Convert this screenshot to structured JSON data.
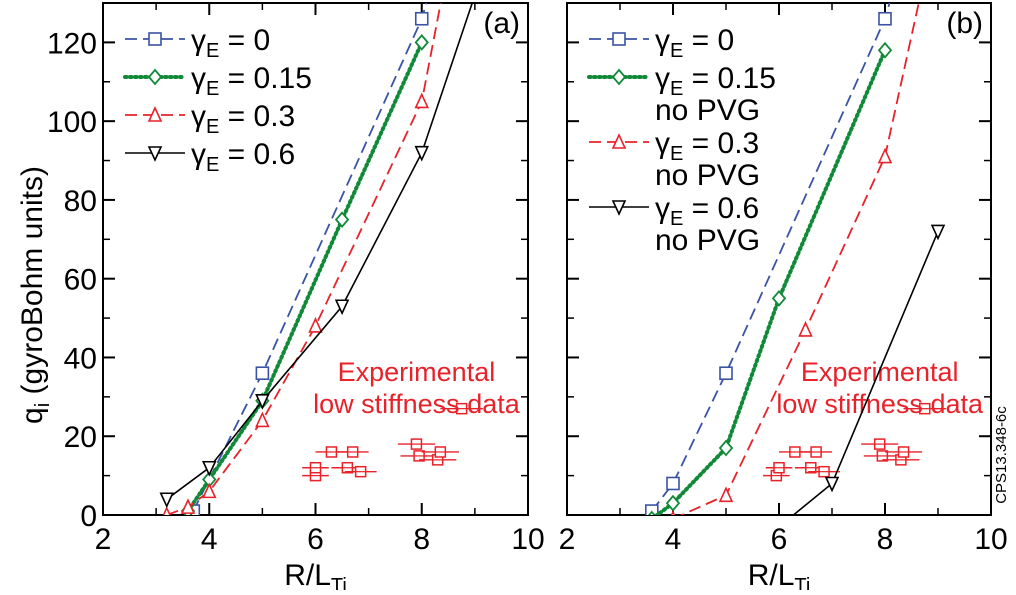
{
  "figure": {
    "ylabel_main": "q",
    "ylabel_sub": "i",
    "ylabel_rest": " (gyroBohm units)",
    "side_text": "CPS13.348-6c",
    "colors": {
      "blue": "#3a53a4",
      "green": "#108a38",
      "red": "#e8222a",
      "black": "#000000",
      "annot": "#e8222a"
    }
  },
  "chart_data": [
    {
      "type": "line",
      "panel_label": "(a)",
      "xlabel_main": "R/L",
      "xlabel_sub": "Ti",
      "xlim": [
        2,
        10
      ],
      "ylim": [
        0,
        130
      ],
      "xticks": [
        2,
        4,
        6,
        8,
        10
      ],
      "yticks": [
        0,
        20,
        40,
        60,
        80,
        100,
        120
      ],
      "grid": false,
      "legend": "top-left",
      "series": [
        {
          "name": "γE = 0",
          "name_main": "γ",
          "name_sub": "E",
          "name_rest": " = 0",
          "name_line2": "",
          "color": "blue",
          "dash": "dashed",
          "marker": "square",
          "points": [
            [
              3.7,
              1
            ],
            [
              5,
              36
            ],
            [
              8,
              126
            ],
            [
              8.3,
              140
            ]
          ],
          "marker_points": [
            [
              3.7,
              1
            ],
            [
              5,
              36
            ],
            [
              8,
              126
            ]
          ]
        },
        {
          "name": "γE = 0.15",
          "name_main": "γ",
          "name_sub": "E",
          "name_rest": " = 0.15",
          "name_line2": "",
          "color": "green",
          "dash": "dotted",
          "marker": "diamond",
          "points": [
            [
              3.6,
              1
            ],
            [
              4,
              9
            ],
            [
              5,
              29
            ],
            [
              6.5,
              75
            ],
            [
              8,
              120
            ]
          ],
          "marker_points": [
            [
              3.6,
              1
            ],
            [
              4,
              9
            ],
            [
              5,
              29
            ],
            [
              6.5,
              75
            ],
            [
              8,
              120
            ]
          ]
        },
        {
          "name": "γE = 0.3",
          "name_main": "γ",
          "name_sub": "E",
          "name_rest": " = 0.3",
          "name_line2": "",
          "color": "red",
          "dash": "dashed",
          "marker": "triangle-up",
          "points": [
            [
              3.2,
              0
            ],
            [
              3.6,
              2
            ],
            [
              4,
              6
            ],
            [
              5,
              24
            ],
            [
              6,
              48
            ],
            [
              8,
              105
            ],
            [
              8.5,
              140
            ]
          ],
          "marker_points": [
            [
              3.2,
              0
            ],
            [
              3.6,
              2
            ],
            [
              4,
              6
            ],
            [
              5,
              24
            ],
            [
              6,
              48
            ],
            [
              8,
              105
            ]
          ]
        },
        {
          "name": "γE = 0.6",
          "name_main": "γ",
          "name_sub": "E",
          "name_rest": " = 0.6",
          "name_line2": "",
          "color": "black",
          "dash": "solid",
          "marker": "triangle-down",
          "points": [
            [
              3.2,
              4
            ],
            [
              4,
              12
            ],
            [
              5,
              29
            ],
            [
              6.5,
              53
            ],
            [
              8,
              92
            ],
            [
              9.2,
              140
            ]
          ],
          "marker_points": [
            [
              3.2,
              4
            ],
            [
              4,
              12
            ],
            [
              5,
              29
            ],
            [
              6.5,
              53
            ],
            [
              8,
              92
            ]
          ]
        }
      ],
      "experimental": {
        "label_line1": "Experimental",
        "label_line2": "low stiffness data",
        "color": "annot",
        "points": [
          {
            "x": 6.0,
            "y": 10,
            "xerr": 0.25
          },
          {
            "x": 6.0,
            "y": 12,
            "xerr": 0.25
          },
          {
            "x": 6.3,
            "y": 16,
            "xerr": 0.3
          },
          {
            "x": 6.7,
            "y": 16,
            "xerr": 0.3
          },
          {
            "x": 6.6,
            "y": 12,
            "xerr": 0.3
          },
          {
            "x": 6.85,
            "y": 11,
            "xerr": 0.3
          },
          {
            "x": 7.9,
            "y": 18,
            "xerr": 0.35
          },
          {
            "x": 7.95,
            "y": 15,
            "xerr": 0.35
          },
          {
            "x": 8.3,
            "y": 14,
            "xerr": 0.35
          },
          {
            "x": 8.35,
            "y": 16,
            "xerr": 0.35
          },
          {
            "x": 8.75,
            "y": 27,
            "xerr": 0.4
          }
        ]
      }
    },
    {
      "type": "line",
      "panel_label": "(b)",
      "xlabel_main": "R/L",
      "xlabel_sub": "Ti",
      "xlim": [
        2,
        10
      ],
      "ylim": [
        0,
        130
      ],
      "xticks": [
        2,
        4,
        6,
        8,
        10
      ],
      "yticks": [
        0,
        20,
        40,
        60,
        80,
        100,
        120
      ],
      "grid": false,
      "legend": "top-left",
      "series": [
        {
          "name": "γE = 0",
          "name_main": "γ",
          "name_sub": "E",
          "name_rest": " = 0",
          "name_line2": "",
          "color": "blue",
          "dash": "dashed",
          "marker": "square",
          "points": [
            [
              3.6,
              1
            ],
            [
              4,
              8
            ],
            [
              5,
              36
            ],
            [
              8,
              126
            ],
            [
              8.3,
              140
            ]
          ],
          "marker_points": [
            [
              3.6,
              1
            ],
            [
              4,
              8
            ],
            [
              5,
              36
            ],
            [
              8,
              126
            ]
          ]
        },
        {
          "name": "γE = 0.15 no PVG",
          "name_main": "γ",
          "name_sub": "E",
          "name_rest": " = 0.15",
          "name_line2": "no PVG",
          "color": "green",
          "dash": "dotted",
          "marker": "diamond",
          "points": [
            [
              3.6,
              -1
            ],
            [
              4,
              3
            ],
            [
              5,
              17
            ],
            [
              6,
              55
            ],
            [
              8,
              118
            ]
          ],
          "marker_points": [
            [
              3.6,
              -1
            ],
            [
              4,
              3
            ],
            [
              5,
              17
            ],
            [
              6,
              55
            ],
            [
              8,
              118
            ]
          ]
        },
        {
          "name": "γE = 0.3 no PVG",
          "name_main": "γ",
          "name_sub": "E",
          "name_rest": " = 0.3",
          "name_line2": "no PVG",
          "color": "red",
          "dash": "dashed",
          "marker": "triangle-up",
          "points": [
            [
              4,
              -1
            ],
            [
              5,
              5
            ],
            [
              6.5,
              47
            ],
            [
              8,
              91
            ],
            [
              8.8,
              140
            ]
          ],
          "marker_points": [
            [
              4,
              -1
            ],
            [
              5,
              5
            ],
            [
              6.5,
              47
            ],
            [
              8,
              91
            ]
          ]
        },
        {
          "name": "γE = 0.6 no PVG",
          "name_main": "γ",
          "name_sub": "E",
          "name_rest": " = 0.6",
          "name_line2": "no PVG",
          "color": "black",
          "dash": "solid",
          "marker": "triangle-down",
          "points": [
            [
              5,
              -4
            ],
            [
              6,
              -3
            ],
            [
              7,
              8
            ],
            [
              9,
              72
            ]
          ],
          "marker_points": [
            [
              5,
              -4
            ],
            [
              6,
              -3
            ],
            [
              7,
              8
            ],
            [
              9,
              72
            ]
          ]
        }
      ],
      "experimental": {
        "label_line1": "Experimental",
        "label_line2": "low stiffness data",
        "color": "annot",
        "points": [
          {
            "x": 5.95,
            "y": 10,
            "xerr": 0.25
          },
          {
            "x": 6.0,
            "y": 12,
            "xerr": 0.25
          },
          {
            "x": 6.3,
            "y": 16,
            "xerr": 0.3
          },
          {
            "x": 6.7,
            "y": 16,
            "xerr": 0.3
          },
          {
            "x": 6.6,
            "y": 12,
            "xerr": 0.3
          },
          {
            "x": 6.85,
            "y": 11,
            "xerr": 0.3
          },
          {
            "x": 7.9,
            "y": 18,
            "xerr": 0.35
          },
          {
            "x": 7.95,
            "y": 15,
            "xerr": 0.35
          },
          {
            "x": 8.3,
            "y": 14,
            "xerr": 0.35
          },
          {
            "x": 8.35,
            "y": 16,
            "xerr": 0.35
          },
          {
            "x": 8.75,
            "y": 27,
            "xerr": 0.4
          }
        ]
      }
    }
  ]
}
